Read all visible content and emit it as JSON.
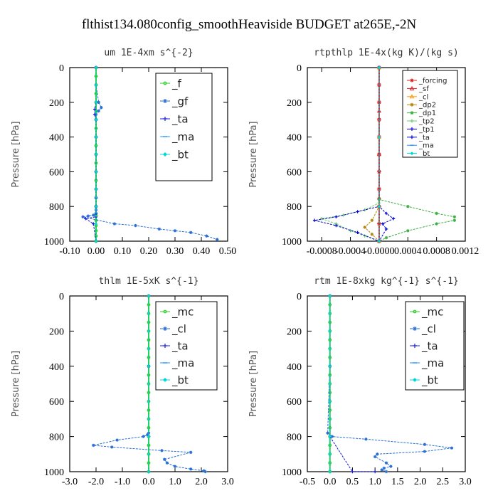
{
  "figure": {
    "title": "flthist134.080config_smoothHeaviside  BUDGET at265E,-2N"
  },
  "chart_data": [
    {
      "type": "line",
      "title": "um  1E-4xm s^{-2}",
      "xlabel": "",
      "ylabel": "Pressure [hPa]",
      "xlim": [
        -0.1,
        0.5
      ],
      "ylim": [
        1000,
        0
      ],
      "xticks": [
        "-0.10",
        "0.00",
        "0.10",
        "0.20",
        "0.30",
        "0.40",
        "0.50"
      ],
      "xtick_values": [
        -0.1,
        0.0,
        0.1,
        0.2,
        0.3,
        0.4,
        0.5
      ],
      "yticks": [
        0,
        200,
        400,
        600,
        800,
        1000
      ],
      "legend": "top-right",
      "legend_font": 15,
      "series": [
        {
          "name": "_f",
          "color": "#2ecc2e",
          "marker": "circle",
          "x": [
            0,
            0,
            0,
            0,
            0,
            0,
            0,
            0,
            0,
            0,
            0,
            0,
            0,
            0,
            0,
            0,
            0,
            0,
            0,
            0,
            0,
            0,
            0
          ],
          "y": [
            0,
            50,
            100,
            150,
            200,
            250,
            300,
            350,
            400,
            450,
            500,
            550,
            600,
            650,
            700,
            750,
            800,
            850,
            880,
            910,
            940,
            970,
            1000
          ]
        },
        {
          "name": "_gf",
          "color": "#2a6fd6",
          "marker": "star",
          "x": [
            0,
            0,
            0.01,
            0.02,
            0.01,
            0,
            0,
            0,
            0,
            0,
            0,
            0,
            0,
            0,
            0,
            -0.01,
            -0.03,
            -0.05,
            0.07,
            0.15,
            0.24,
            0.3,
            0.36,
            0.42,
            0.46
          ],
          "y": [
            0,
            100,
            200,
            230,
            250,
            270,
            300,
            400,
            500,
            600,
            700,
            750,
            800,
            820,
            840,
            850,
            855,
            860,
            900,
            910,
            930,
            940,
            950,
            970,
            990
          ]
        },
        {
          "name": "_ta",
          "color": "#1a1ad6",
          "marker": "plus",
          "x": [
            0,
            0,
            -0.005,
            -0.005,
            0,
            0,
            0,
            0,
            0,
            0,
            0,
            0,
            -0.04,
            -0.01,
            0
          ],
          "y": [
            0,
            200,
            240,
            270,
            300,
            400,
            500,
            600,
            700,
            800,
            840,
            860,
            870,
            900,
            1000
          ]
        },
        {
          "name": "_ma",
          "color": "#1e90ff",
          "marker": "dash",
          "x": [
            0,
            0,
            0,
            0,
            0
          ],
          "y": [
            0,
            250,
            500,
            750,
            1000
          ]
        },
        {
          "name": "_bt",
          "color": "#00d8d8",
          "marker": "diamond",
          "x": [
            0,
            0,
            0,
            0,
            0,
            0,
            0,
            0,
            0,
            0,
            0
          ],
          "y": [
            0,
            100,
            200,
            300,
            400,
            500,
            600,
            700,
            800,
            900,
            1000
          ]
        }
      ]
    },
    {
      "type": "line",
      "title": "rtpthlp  1E-4x(kg K)/(kg s)",
      "xlabel": "",
      "ylabel": "Pressure [hPa]",
      "xlim": [
        -0.001,
        0.0012
      ],
      "ylim": [
        1000,
        0
      ],
      "xticks": [
        "-0.0008",
        "-0.0004",
        "-0.0000",
        "0.0004",
        "0.0008",
        "0.0012"
      ],
      "xtick_values": [
        -0.0008,
        -0.0004,
        0.0,
        0.0004,
        0.0008,
        0.0012
      ],
      "yticks": [
        0,
        200,
        400,
        600,
        800,
        1000
      ],
      "legend": "top-right",
      "legend_font": 10,
      "series": [
        {
          "name": "_forcing",
          "color": "#e31a1c",
          "marker": "star",
          "x": [
            0,
            0,
            0,
            0,
            0,
            0,
            0,
            0,
            0,
            0,
            0
          ],
          "y": [
            0,
            100,
            200,
            300,
            400,
            500,
            600,
            700,
            800,
            900,
            1000
          ]
        },
        {
          "name": "_sf",
          "color": "#e31a1c",
          "marker": "triangle",
          "x": [
            0,
            0,
            0,
            0,
            0
          ],
          "y": [
            0,
            250,
            500,
            750,
            1000
          ]
        },
        {
          "name": "_cl",
          "color": "#ff9900",
          "marker": "triangle",
          "x": [
            0,
            0,
            0,
            0
          ],
          "y": [
            0,
            400,
            800,
            1000
          ]
        },
        {
          "name": "_dp2",
          "color": "#b8860b",
          "marker": "star",
          "x": [
            0,
            0,
            -0.0001,
            -0.0002,
            -0.0001,
            0
          ],
          "y": [
            0,
            800,
            880,
            920,
            960,
            1000
          ]
        },
        {
          "name": "_dp1",
          "color": "#3cb043",
          "marker": "star",
          "x": [
            0,
            0,
            0.0004,
            0.0008,
            0.00105,
            0.00105,
            0.0008,
            0.0004,
            0.0001,
            0
          ],
          "y": [
            0,
            760,
            800,
            840,
            860,
            880,
            900,
            940,
            980,
            1000
          ]
        },
        {
          "name": "_tp2",
          "color": "#66cc66",
          "marker": "plus",
          "x": [
            0,
            0,
            -0.0002,
            -0.0005,
            -0.0008,
            -0.0006,
            -0.0004,
            -0.0002,
            0
          ],
          "y": [
            0,
            780,
            820,
            850,
            870,
            900,
            940,
            970,
            1000
          ]
        },
        {
          "name": "_tp1",
          "color": "#0000cc",
          "marker": "plus",
          "x": [
            0,
            0,
            -0.0003,
            -0.0006,
            -0.0009,
            -0.0006,
            -0.0003,
            0
          ],
          "y": [
            0,
            800,
            830,
            860,
            880,
            910,
            950,
            1000
          ]
        },
        {
          "name": "_ta",
          "color": "#0000cc",
          "marker": "plus",
          "x": [
            0,
            0,
            0.0001,
            0.0002,
            5e-05,
            0.0001,
            0
          ],
          "y": [
            0,
            800,
            840,
            870,
            900,
            930,
            1000
          ]
        },
        {
          "name": "_ma",
          "color": "#1e90ff",
          "marker": "dash",
          "x": [
            0,
            0,
            0,
            0
          ],
          "y": [
            0,
            400,
            800,
            1000
          ]
        },
        {
          "name": "_bt",
          "color": "#00d8d8",
          "marker": "diamond",
          "x": [
            0,
            0,
            0,
            0
          ],
          "y": [
            0,
            400,
            800,
            1000
          ]
        }
      ]
    },
    {
      "type": "line",
      "title": "thlm  1E-5xK s^{-1}",
      "xlabel": "",
      "ylabel": "Pressure [hPa]",
      "xlim": [
        -3.0,
        3.0
      ],
      "ylim": [
        1000,
        0
      ],
      "xticks": [
        "-3.0",
        "-2.0",
        "-1.0",
        "0.0",
        "1.0",
        "2.0",
        "3.0"
      ],
      "xtick_values": [
        -3,
        -2,
        -1,
        0,
        1,
        2,
        3
      ],
      "yticks": [
        0,
        200,
        400,
        600,
        800,
        1000
      ],
      "legend": "top-right",
      "legend_font": 15,
      "series": [
        {
          "name": "_mc",
          "color": "#2ecc2e",
          "marker": "circle",
          "x": [
            0,
            0,
            0,
            0,
            0,
            0,
            0,
            0,
            0,
            0,
            0,
            0,
            0,
            0,
            0,
            0,
            0,
            0,
            0,
            0,
            0
          ],
          "y": [
            0,
            50,
            100,
            150,
            200,
            250,
            300,
            350,
            400,
            450,
            500,
            550,
            600,
            650,
            700,
            750,
            800,
            850,
            900,
            950,
            1000
          ]
        },
        {
          "name": "_cl",
          "color": "#2a6fd6",
          "marker": "star",
          "x": [
            0,
            0,
            0,
            -0.05,
            -0.2,
            -1.2,
            -2.1,
            -1.4,
            0.5,
            1.6,
            0.6,
            0.7,
            1.0,
            1.6,
            2.1,
            2.15
          ],
          "y": [
            0,
            400,
            780,
            790,
            800,
            820,
            850,
            860,
            880,
            890,
            930,
            950,
            970,
            985,
            995,
            1000
          ]
        },
        {
          "name": "_ta",
          "color": "#1a1ad6",
          "marker": "plus",
          "x": [
            0,
            0,
            0,
            0
          ],
          "y": [
            0,
            400,
            800,
            1000
          ]
        },
        {
          "name": "_ma",
          "color": "#1e90ff",
          "marker": "dash",
          "x": [
            0,
            0,
            0,
            0
          ],
          "y": [
            0,
            400,
            800,
            1000
          ]
        },
        {
          "name": "_bt",
          "color": "#00d8d8",
          "marker": "diamond",
          "x": [
            0,
            0,
            0,
            0,
            0,
            0,
            0,
            0,
            0,
            0,
            0
          ],
          "y": [
            0,
            100,
            200,
            300,
            400,
            500,
            600,
            700,
            800,
            900,
            1000
          ]
        }
      ]
    },
    {
      "type": "line",
      "title": "rtm  1E-8xkg kg^{-1} s^{-1}",
      "xlabel": "",
      "ylabel": "Pressure [hPa]",
      "xlim": [
        -0.5,
        3.0
      ],
      "ylim": [
        1000,
        0
      ],
      "xticks": [
        "-0.5",
        "0.0",
        "0.5",
        "1.0",
        "1.5",
        "2.0",
        "2.5",
        "3.0"
      ],
      "xtick_values": [
        -0.5,
        0.0,
        0.5,
        1.0,
        1.5,
        2.0,
        2.5,
        3.0
      ],
      "yticks": [
        0,
        200,
        400,
        600,
        800,
        1000
      ],
      "legend": "top-right",
      "legend_font": 15,
      "series": [
        {
          "name": "_mc",
          "color": "#2ecc2e",
          "marker": "circle",
          "x": [
            0,
            0,
            0,
            0,
            0,
            0,
            0,
            0,
            0,
            0,
            0,
            0,
            0,
            0,
            0,
            0,
            0,
            0,
            0,
            0,
            0
          ],
          "y": [
            0,
            50,
            100,
            150,
            200,
            250,
            300,
            350,
            400,
            450,
            500,
            550,
            600,
            650,
            700,
            750,
            800,
            850,
            900,
            950,
            1000
          ]
        },
        {
          "name": "_cl",
          "color": "#2a6fd6",
          "marker": "star",
          "x": [
            0,
            0,
            -0.05,
            0.05,
            0.8,
            2.1,
            2.7,
            2.1,
            1.05,
            1.0,
            1.25,
            1.35,
            1.2,
            1.15,
            1.25
          ],
          "y": [
            0,
            400,
            780,
            800,
            815,
            845,
            865,
            885,
            900,
            915,
            950,
            970,
            980,
            990,
            1000
          ]
        },
        {
          "name": "_ta",
          "color": "#1a1ad6",
          "marker": "plus",
          "x": [
            0,
            0,
            0,
            0.5,
            1.0
          ],
          "y": [
            0,
            400,
            800,
            1000,
            1000
          ]
        },
        {
          "name": "_ma",
          "color": "#1e90ff",
          "marker": "dash",
          "x": [
            0,
            0,
            0,
            0
          ],
          "y": [
            0,
            400,
            800,
            1000
          ]
        },
        {
          "name": "_bt",
          "color": "#00d8d8",
          "marker": "diamond",
          "x": [
            0,
            0,
            0,
            0,
            0,
            0,
            0,
            0,
            0,
            0,
            0
          ],
          "y": [
            0,
            100,
            200,
            300,
            400,
            500,
            600,
            700,
            800,
            900,
            1000
          ]
        }
      ]
    }
  ]
}
